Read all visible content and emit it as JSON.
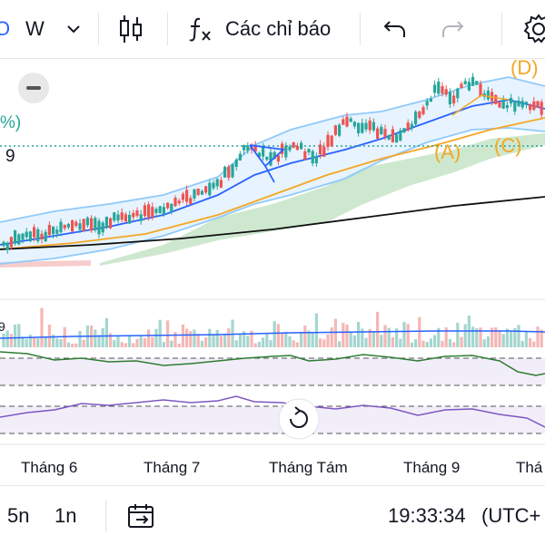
{
  "toolbar": {
    "symbol_partial": "O",
    "interval": "W",
    "indicators_label": "Các chỉ báo",
    "icons": [
      "chevron-down-icon",
      "candlestick-icon",
      "fx-icon",
      "undo-icon",
      "redo-icon",
      "settings-gear-icon"
    ]
  },
  "chart": {
    "left_edge_labels": {
      "pct": "%)",
      "nine_a": "9",
      "nine_b": "9"
    },
    "wave_labels": [
      "(A)",
      "(C)",
      "(D)"
    ],
    "months": [
      "Tháng 6",
      "Tháng 7",
      "Tháng Tám",
      "Tháng 9",
      "Thá"
    ],
    "colors": {
      "up": "#26a69a",
      "down": "#ef5350",
      "basis": "#2962ff",
      "band": "#90caf9",
      "ma_orange": "#f5a623",
      "ma_black": "#111111",
      "cloud": "#a5d6a7",
      "wave": "#f5a623",
      "osc1": "#2e7d32",
      "osc2": "#7e57c2"
    }
  },
  "bottom": {
    "timeframes": [
      "5n",
      "1n"
    ],
    "time": "19:33:34",
    "tz": "(UTC+"
  }
}
